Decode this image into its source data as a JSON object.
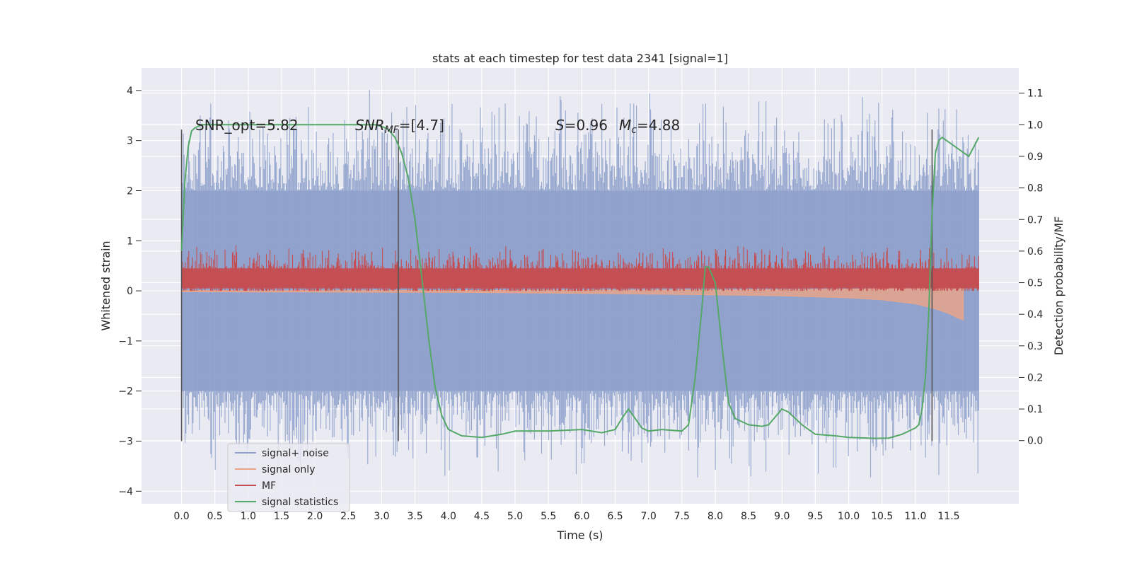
{
  "chart_data": {
    "type": "line",
    "title": "stats at each timestep for test data 2341 [signal=1]",
    "xlabel": "Time (s)",
    "ylabel": "Whitened strain",
    "y2label": "Detection probability/MF",
    "xlim": [
      -0.6,
      12.55
    ],
    "ylim": [
      -4.25,
      4.45
    ],
    "y2lim": [
      -0.2,
      1.18
    ],
    "xticks": [
      0.0,
      0.5,
      1.0,
      1.5,
      2.0,
      2.5,
      3.0,
      3.5,
      4.0,
      4.5,
      5.0,
      5.5,
      6.0,
      6.5,
      7.0,
      7.5,
      8.0,
      8.5,
      9.0,
      9.5,
      10.0,
      10.5,
      11.0,
      11.5
    ],
    "xtick_labels": [
      "0.0",
      "0.5",
      "1.0",
      "1.5",
      "2.0",
      "2.5",
      "3.0",
      "3.5",
      "4.0",
      "4.5",
      "5.0",
      "5.5",
      "6.0",
      "6.5",
      "7.0",
      "7.5",
      "8.0",
      "8.5",
      "9.0",
      "9.5",
      "10.0",
      "10.5",
      "11.0",
      "11.5"
    ],
    "yticks": [
      -4,
      -3,
      -2,
      -1,
      0,
      1,
      2,
      3,
      4
    ],
    "ytick_labels": [
      "−4",
      "−3",
      "−2",
      "−1",
      "0",
      "1",
      "2",
      "3",
      "4"
    ],
    "y2ticks": [
      0.0,
      0.1,
      0.2,
      0.3,
      0.4,
      0.5,
      0.6,
      0.7,
      0.8,
      0.9,
      1.0,
      1.1
    ],
    "y2tick_labels": [
      "0.0",
      "0.1",
      "0.2",
      "0.3",
      "0.4",
      "0.5",
      "0.6",
      "0.7",
      "0.8",
      "0.9",
      "1.0",
      "1.1"
    ],
    "grid": true,
    "legend_position": "bottom-left",
    "annotations": {
      "snr_opt": "SNR_opt=5.82",
      "snr_mf_main": "SNR",
      "snr_mf_sub": "MF",
      "snr_mf_rest": "=[4.7]",
      "s_sym": "S",
      "s_val": "=0.96",
      "mc_sym": "M",
      "mc_sub": "c",
      "mc_val": "=4.88"
    },
    "vertical_lines": [
      0.0,
      3.25,
      11.25
    ],
    "vertical_line_range": [
      -3.0,
      3.22
    ],
    "series": [
      {
        "name": "signal+ noise",
        "color": "#8da0cb",
        "style": "noise-band",
        "x_range": [
          0.0,
          11.95
        ],
        "typical_range": [
          -2.0,
          2.0
        ],
        "extreme_range": [
          -3.8,
          4.1
        ]
      },
      {
        "name": "signal only",
        "color": "#e8a58a",
        "style": "chirp",
        "x": [
          0.0,
          4.0,
          6.0,
          8.0,
          9.0,
          10.0,
          10.5,
          11.0,
          11.3,
          11.5,
          11.65,
          11.72
        ],
        "amplitude": [
          0.02,
          0.03,
          0.05,
          0.08,
          0.1,
          0.14,
          0.18,
          0.26,
          0.36,
          0.45,
          0.55,
          0.58
        ]
      },
      {
        "name": "MF",
        "color": "#c44e52",
        "style": "noise-band",
        "x_range": [
          0.0,
          11.95
        ],
        "typical_range": [
          0.0,
          0.55
        ],
        "extreme_range": [
          0.0,
          0.93
        ]
      },
      {
        "name": "signal statistics",
        "color": "#55a868",
        "axis": "right",
        "x": [
          0.0,
          0.05,
          0.1,
          0.15,
          0.2,
          0.3,
          0.5,
          1.0,
          2.0,
          2.9,
          3.0,
          3.1,
          3.2,
          3.3,
          3.4,
          3.5,
          3.6,
          3.7,
          3.8,
          3.9,
          4.0,
          4.2,
          4.5,
          4.8,
          5.0,
          5.5,
          6.0,
          6.3,
          6.5,
          6.6,
          6.7,
          6.8,
          6.9,
          7.0,
          7.2,
          7.5,
          7.6,
          7.7,
          7.8,
          7.85,
          7.9,
          8.0,
          8.1,
          8.2,
          8.3,
          8.5,
          8.7,
          8.8,
          9.0,
          9.1,
          9.3,
          9.5,
          9.8,
          10.0,
          10.4,
          10.6,
          10.8,
          11.0,
          11.05,
          11.1,
          11.15,
          11.2,
          11.25,
          11.3,
          11.35,
          11.4,
          11.6,
          11.8,
          11.95
        ],
        "y": [
          0.6,
          0.82,
          0.93,
          0.98,
          0.99,
          1.0,
          1.0,
          1.0,
          1.0,
          1.0,
          0.995,
          0.985,
          0.96,
          0.91,
          0.83,
          0.7,
          0.52,
          0.33,
          0.17,
          0.08,
          0.035,
          0.015,
          0.01,
          0.02,
          0.03,
          0.03,
          0.035,
          0.025,
          0.035,
          0.07,
          0.1,
          0.07,
          0.04,
          0.03,
          0.035,
          0.03,
          0.05,
          0.2,
          0.42,
          0.55,
          0.55,
          0.5,
          0.3,
          0.12,
          0.07,
          0.05,
          0.045,
          0.05,
          0.1,
          0.09,
          0.05,
          0.02,
          0.015,
          0.01,
          0.007,
          0.008,
          0.02,
          0.04,
          0.05,
          0.1,
          0.2,
          0.4,
          0.72,
          0.91,
          0.95,
          0.96,
          0.93,
          0.9,
          0.96
        ]
      }
    ]
  }
}
